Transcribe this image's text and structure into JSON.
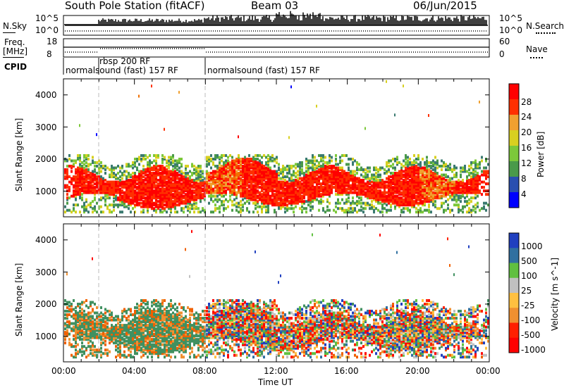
{
  "header": {
    "station": "South Pole Station (fitACF)",
    "beam": "Beam 03",
    "date": "06/Jun/2015"
  },
  "strip": {
    "nsky_label": "N.Sky",
    "nsky_ticks": [
      "10^5",
      "10^0"
    ],
    "freq_label_line1": "Freq.",
    "freq_label_line2": "[MHz]",
    "freq_ticks": [
      "18",
      "8"
    ],
    "nsearch_label": "N.Search",
    "nsearch_ticks": [
      "10^5",
      "10^0"
    ],
    "nave_label": "Nave",
    "nave_ticks": [
      "60",
      "0"
    ],
    "cpid_label": "CPID",
    "cpid_segments": [
      "normalsound (fast) 157 RF",
      "rbsp 200 RF",
      "normalsound (fast) 157 RF"
    ]
  },
  "chart_data": [
    {
      "type": "heatmap",
      "panel": "power",
      "ylabel": "Slant Range [km]",
      "yticks": [
        "4000",
        "3000",
        "2000",
        "1000"
      ],
      "ylim": [
        200,
        4500
      ],
      "xlim_hours": [
        0,
        24
      ],
      "colorbar_label": "Power [dB]",
      "colorbar_ticks": [
        "28",
        "24",
        "20",
        "16",
        "12",
        "8",
        "4"
      ],
      "colorbar_colors": [
        "#0000ff",
        "#2a4fb0",
        "#3a7a70",
        "#4a9a4a",
        "#7cc83a",
        "#d8d020",
        "#f0a030",
        "#f07000",
        "#ff3000",
        "#ff0000"
      ]
    },
    {
      "type": "heatmap",
      "panel": "velocity",
      "ylabel": "Slant Range [km]",
      "yticks": [
        "4000",
        "3000",
        "2000",
        "1000"
      ],
      "ylim": [
        200,
        4500
      ],
      "xlim_hours": [
        0,
        24
      ],
      "colorbar_label": "Velocity [m s^-1]",
      "colorbar_ticks": [
        "1000",
        "500",
        "100",
        "25",
        "-25",
        "-100",
        "-500",
        "-1000"
      ],
      "colorbar_colors": [
        "#2040c0",
        "#3070a0",
        "#409060",
        "#60c040",
        "#c0c0c0",
        "#ffc040",
        "#f09030",
        "#f06000",
        "#ff2000",
        "#ff0000"
      ]
    }
  ],
  "xaxis": {
    "label": "Time UT",
    "ticks": [
      "00:00",
      "04:00",
      "08:00",
      "12:00",
      "16:00",
      "20:00",
      "00:00"
    ]
  }
}
